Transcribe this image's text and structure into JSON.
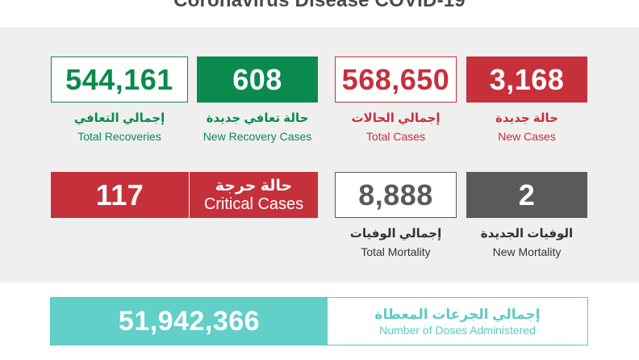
{
  "title": "Coronavirus Disease COVID-19",
  "colors": {
    "red": "#c6303b",
    "green": "#0b8a4e",
    "gray": "#5a5a5a",
    "teal": "#62cfc9"
  },
  "stats": {
    "new_cases": {
      "value": "3,168",
      "label_ar": "حالة جديدة",
      "label_en": "New Cases"
    },
    "total_cases": {
      "value": "568,650",
      "label_ar": "إجمالي الحالات",
      "label_en": "Total Cases"
    },
    "new_recovery": {
      "value": "608",
      "label_ar": "حالة تعافي جديدة",
      "label_en": "New Recovery Cases"
    },
    "total_recoveries": {
      "value": "544,161",
      "label_ar": "إجمالي التعافي",
      "label_en": "Total Recoveries"
    },
    "new_mortality": {
      "value": "2",
      "label_ar": "الوفيات الجديدة",
      "label_en": "New Mortality"
    },
    "total_mortality": {
      "value": "8,888",
      "label_ar": "إجمالي الوفيات",
      "label_en": "Total Mortality"
    },
    "critical": {
      "value": "117",
      "label_ar": "حالة حرجة",
      "label_en": "Critical Cases"
    }
  },
  "doses": {
    "value": "51,942,366",
    "label_ar": "إجمالي الجرعات المعطاة",
    "label_en": "Number of Doses Administered"
  }
}
